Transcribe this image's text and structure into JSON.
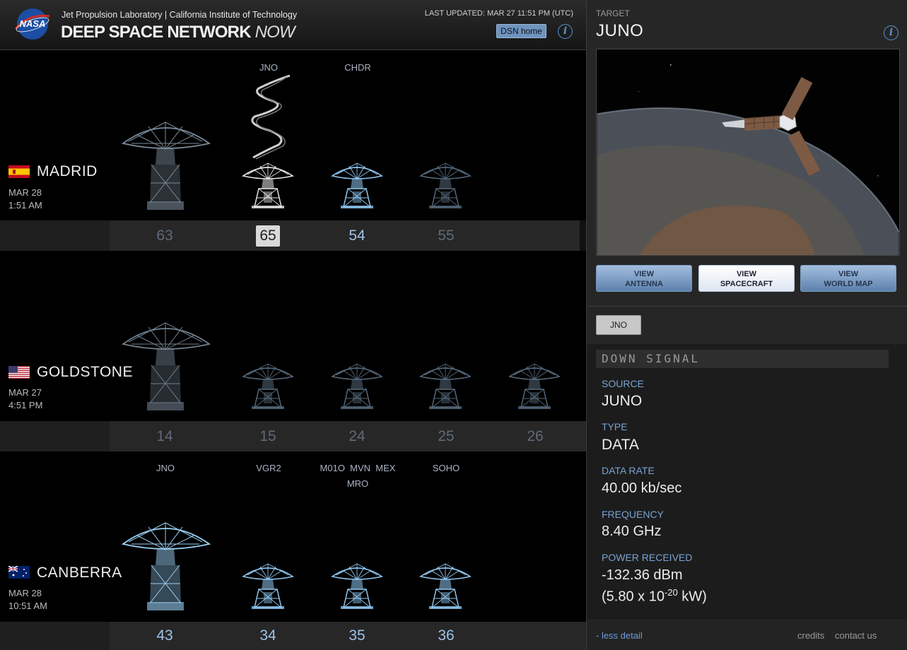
{
  "header": {
    "org": "Jet Propulsion Laboratory | California Institute of Technology",
    "title_main": "DEEP SPACE NETWORK",
    "title_now": "NOW",
    "last_updated": "LAST UPDATED: MAR 27 11:51 PM (UTC)",
    "home_button": "DSN home",
    "info_glyph": "i"
  },
  "colors": {
    "accent_blue": "#5b92d0",
    "active_dish": "#8fc6f0",
    "dim_dish": "#7a8fa5"
  },
  "stations": {
    "madrid": {
      "name": "MADRID",
      "date": "MAR 28",
      "time": "1:51 AM",
      "targets": [
        "JNO",
        "CHDR"
      ],
      "numbers": [
        "63",
        "65",
        "54",
        "55"
      ]
    },
    "goldstone": {
      "name": "GOLDSTONE",
      "date": "MAR 27",
      "time": "4:51 PM",
      "numbers": [
        "14",
        "15",
        "24",
        "25",
        "26"
      ]
    },
    "canberra": {
      "name": "CANBERRA",
      "date": "MAR 28",
      "time": "10:51 AM",
      "targets": [
        "JNO",
        "VGR2",
        "M01O  MVN  MEX",
        "MRO",
        "SOHO"
      ],
      "numbers": [
        "43",
        "34",
        "35",
        "36"
      ]
    }
  },
  "panel": {
    "target_label": "TARGET",
    "target_name": "JUNO",
    "buttons": [
      {
        "line1": "VIEW",
        "line2": "ANTENNA"
      },
      {
        "line1": "VIEW",
        "line2": "SPACECRAFT"
      },
      {
        "line1": "VIEW",
        "line2": "WORLD MAP"
      }
    ],
    "chip": "JNO",
    "signal_header": "DOWN SIGNAL",
    "fields": {
      "source_label": "SOURCE",
      "source": "JUNO",
      "type_label": "TYPE",
      "type": "DATA",
      "rate_label": "DATA RATE",
      "rate": "40.00 kb/sec",
      "freq_label": "FREQUENCY",
      "freq": "8.40 GHz",
      "power_label": "POWER RECEIVED",
      "power_dbm": "-132.36 dBm",
      "power_kw_pre": "(5.80 x 10",
      "power_kw_exp": "-20",
      "power_kw_post": " kW)"
    },
    "footer": {
      "less": "- less detail",
      "credits": "credits",
      "contact": "contact us"
    }
  }
}
